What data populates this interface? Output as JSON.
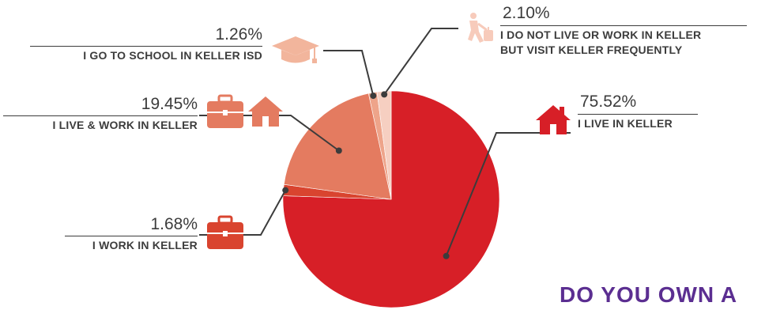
{
  "chart_data": {
    "type": "pie",
    "start_angle_deg": 0,
    "direction": "clockwise",
    "slices": [
      {
        "label": "I LIVE IN KELLER",
        "value": 75.52,
        "value_text": "75.52%",
        "color": "#d71f27",
        "icon": "house-icon"
      },
      {
        "label": "I WORK IN KELLER",
        "value": 1.68,
        "value_text": "1.68%",
        "color": "#d9442f",
        "icon": "briefcase-icon"
      },
      {
        "label": "I LIVE & WORK IN KELLER",
        "value": 19.45,
        "value_text": "19.45%",
        "color": "#e47b60",
        "icon": "briefcase-and-house-icon"
      },
      {
        "label": "I GO TO SCHOOL IN KELLER ISD",
        "value": 1.26,
        "value_text": "1.26%",
        "color": "#eea48a",
        "icon": "graduation-cap-icon"
      },
      {
        "label": "I DO NOT LIVE OR WORK IN KELLER BUT VISIT KELLER FREQUENTLY",
        "label_lines": [
          "I DO NOT LIVE OR WORK IN KELLER",
          "BUT VISIT KELLER FREQUENTLY"
        ],
        "value": 2.1,
        "value_text": "2.10%",
        "color": "#f6cfc1",
        "icon": "traveler-with-suitcase-icon"
      }
    ]
  },
  "next_section_heading": "DO YOU OWN A"
}
